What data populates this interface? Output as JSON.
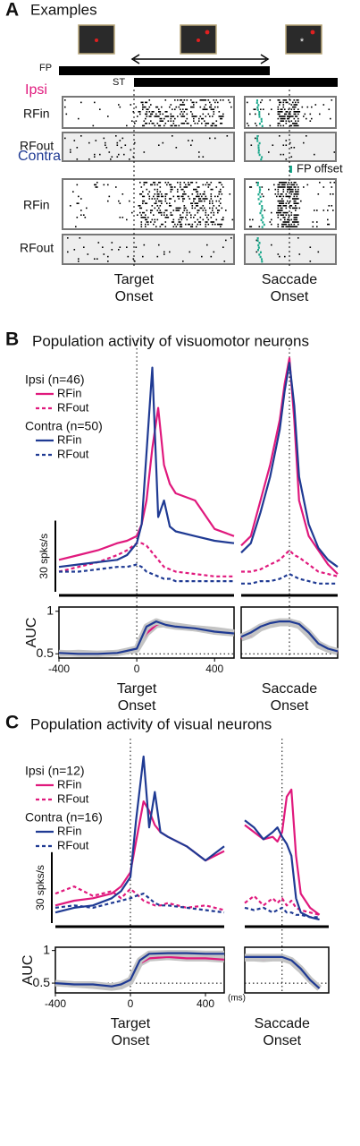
{
  "panel_a": {
    "label": "A",
    "title": "Examples",
    "fp": "FP",
    "st": "ST",
    "ipsi": "Ipsi",
    "contra": "Contra",
    "rows": [
      "RFin",
      "RFout",
      "RFin",
      "RFout"
    ],
    "fp_offset": "FP offset",
    "target_onset": [
      "Target",
      "Onset"
    ],
    "saccade_onset": [
      "Saccade",
      "Onset"
    ]
  },
  "panel_b": {
    "label": "B",
    "title": "Population activity of visuomotor neurons"
  },
  "panel_c": {
    "label": "C",
    "title": "Population activity of visual neurons"
  },
  "chart_data": [
    {
      "type": "line",
      "xlim": [
        -400,
        500
      ],
      "ylim": [
        0,
        100
      ],
      "baseline": true,
      "vline": 0,
      "scalebar": {
        "value": 30,
        "label": "30 spks/s"
      },
      "legend_groups": [
        "Ipsi (n=46)",
        "Contra (n=50)"
      ],
      "x": [
        -400,
        -300,
        -200,
        -100,
        -50,
        0,
        25,
        50,
        80,
        110,
        140,
        170,
        200,
        300,
        400,
        500
      ],
      "series": [
        {
          "name": "RFin",
          "color": "#e0197d",
          "dashed": false,
          "values": [
            15,
            17,
            19,
            22,
            23,
            25,
            30,
            40,
            62,
            79,
            55,
            47,
            43,
            40,
            28,
            25
          ]
        },
        {
          "name": "RFout",
          "color": "#e0197d",
          "dashed": true,
          "values": [
            10,
            12,
            14,
            17,
            19,
            22,
            22,
            21,
            18,
            15,
            12,
            11,
            10,
            9,
            8,
            8
          ]
        },
        {
          "name": "RFin",
          "color": "#1f3a93",
          "dashed": false,
          "values": [
            12,
            13,
            14,
            15,
            17,
            22,
            30,
            60,
            96,
            33,
            40,
            29,
            27,
            25,
            23,
            22
          ]
        },
        {
          "name": "RFout",
          "color": "#1f3a93",
          "dashed": true,
          "values": [
            10,
            10,
            11,
            12,
            12,
            13,
            12,
            10,
            9,
            8,
            7,
            7,
            6,
            6,
            6,
            6
          ]
        }
      ]
    },
    {
      "type": "line",
      "xlim": [
        -250,
        250
      ],
      "ylim": [
        0,
        100
      ],
      "baseline": true,
      "vline": 0,
      "x": [
        -250,
        -200,
        -150,
        -100,
        -50,
        -25,
        0,
        25,
        50,
        100,
        150,
        200,
        250
      ],
      "series": [
        {
          "color": "#e0197d",
          "dashed": false,
          "values": [
            21,
            25,
            40,
            55,
            74,
            89,
            100,
            74,
            40,
            25,
            19,
            13,
            9
          ]
        },
        {
          "color": "#e0197d",
          "dashed": true,
          "values": [
            10,
            10,
            11,
            13,
            15,
            17,
            19,
            17,
            16,
            13,
            10,
            9,
            8
          ]
        },
        {
          "color": "#1f3a93",
          "dashed": false,
          "values": [
            18,
            22,
            35,
            50,
            70,
            86,
            98,
            80,
            50,
            30,
            20,
            15,
            12
          ]
        },
        {
          "color": "#1f3a93",
          "dashed": true,
          "values": [
            5,
            5,
            6,
            6,
            7,
            8,
            9,
            8,
            7,
            6,
            5,
            5,
            5
          ]
        }
      ]
    },
    {
      "type": "line",
      "xlim": [
        -400,
        500
      ],
      "ylim": [
        0.45,
        1.05
      ],
      "yticks": [
        0.5,
        1
      ],
      "xticks": [
        -400,
        0,
        400
      ],
      "frame": true,
      "shaded": true,
      "hline": 0.5,
      "vline": 0,
      "ylabel": "AUC",
      "xlabel": [
        "Target",
        "Onset"
      ],
      "x": [
        -400,
        -300,
        -200,
        -100,
        0,
        50,
        100,
        150,
        200,
        300,
        400,
        500
      ],
      "series": [
        {
          "color": "#e0197d",
          "dashed": false,
          "values": [
            0.5,
            0.51,
            0.5,
            0.51,
            0.55,
            0.74,
            0.84,
            0.85,
            0.83,
            0.8,
            0.78,
            0.75
          ]
        },
        {
          "color": "#1f3a93",
          "dashed": false,
          "values": [
            0.51,
            0.5,
            0.5,
            0.51,
            0.56,
            0.82,
            0.88,
            0.84,
            0.82,
            0.8,
            0.76,
            0.74
          ]
        }
      ]
    },
    {
      "type": "line",
      "xlim": [
        -250,
        250
      ],
      "ylim": [
        0.45,
        1.05
      ],
      "frame": true,
      "shaded": true,
      "hline": 0.5,
      "vline": 0,
      "xlabel": [
        "Saccade",
        "Onset"
      ],
      "x": [
        -250,
        -200,
        -150,
        -100,
        -50,
        0,
        50,
        100,
        150,
        200,
        250
      ],
      "series": [
        {
          "color": "#e0197d",
          "dashed": false,
          "values": [
            0.68,
            0.72,
            0.8,
            0.84,
            0.86,
            0.86,
            0.83,
            0.72,
            0.6,
            0.55,
            0.52
          ]
        },
        {
          "color": "#1f3a93",
          "dashed": false,
          "values": [
            0.7,
            0.75,
            0.82,
            0.86,
            0.88,
            0.88,
            0.85,
            0.75,
            0.62,
            0.56,
            0.53
          ]
        }
      ]
    },
    {
      "type": "line",
      "xlim": [
        -400,
        500
      ],
      "ylim": [
        0,
        72
      ],
      "baseline": true,
      "vline": 0,
      "scalebar": {
        "value": 30,
        "label": "30 spks/s"
      },
      "legend_groups": [
        "Ipsi (n=12)",
        "Contra (n=16)"
      ],
      "x": [
        -400,
        -300,
        -200,
        -100,
        -50,
        0,
        30,
        70,
        100,
        130,
        160,
        200,
        300,
        400,
        500
      ],
      "series": [
        {
          "name": "RFin",
          "color": "#e0197d",
          "dashed": false,
          "values": [
            9,
            11,
            12,
            14,
            17,
            23,
            36,
            53,
            49,
            43,
            40,
            38,
            34,
            28,
            32
          ]
        },
        {
          "name": "RFout",
          "color": "#e0197d",
          "dashed": true,
          "values": [
            14,
            17,
            13,
            15,
            12,
            16,
            14,
            11,
            10,
            9,
            9,
            10,
            8,
            9,
            7
          ]
        },
        {
          "name": "RFin",
          "color": "#1f3a93",
          "dashed": false,
          "values": [
            6,
            8,
            9,
            12,
            15,
            21,
            45,
            72,
            42,
            57,
            40,
            38,
            34,
            28,
            34
          ]
        },
        {
          "name": "RFout",
          "color": "#1f3a93",
          "dashed": true,
          "values": [
            8,
            9,
            8,
            10,
            11,
            12,
            13,
            14,
            12,
            10,
            9,
            9,
            8,
            7,
            6
          ]
        }
      ]
    },
    {
      "type": "line",
      "xlim": [
        -200,
        250
      ],
      "ylim": [
        0,
        72
      ],
      "baseline": true,
      "vline": 0,
      "x": [
        -200,
        -150,
        -100,
        -50,
        -25,
        0,
        25,
        50,
        75,
        100,
        150,
        200
      ],
      "series": [
        {
          "color": "#e0197d",
          "dashed": false,
          "values": [
            43,
            40,
            37,
            38,
            36,
            40,
            55,
            58,
            30,
            14,
            8,
            5
          ]
        },
        {
          "color": "#e0197d",
          "dashed": true,
          "values": [
            10,
            13,
            9,
            12,
            10,
            12,
            9,
            11,
            8,
            7,
            6,
            5
          ]
        },
        {
          "color": "#1f3a93",
          "dashed": false,
          "values": [
            45,
            42,
            37,
            40,
            42,
            38,
            35,
            30,
            12,
            6,
            4,
            3
          ]
        },
        {
          "color": "#1f3a93",
          "dashed": true,
          "values": [
            8,
            7,
            8,
            6,
            7,
            8,
            6,
            6,
            5,
            5,
            4,
            4
          ]
        }
      ]
    },
    {
      "type": "line",
      "xlim": [
        -400,
        500
      ],
      "ylim": [
        0.35,
        1.05
      ],
      "yticks": [
        0.5,
        1
      ],
      "xticks": [
        -400,
        0,
        400
      ],
      "frame": true,
      "shaded": true,
      "hline": 0.5,
      "vline": 0,
      "ylabel": "AUC",
      "xlabel": [
        "Target",
        "Onset"
      ],
      "xunit": "(ms)",
      "x": [
        -400,
        -300,
        -200,
        -100,
        -50,
        0,
        50,
        100,
        200,
        300,
        400,
        500
      ],
      "series": [
        {
          "color": "#e0197d",
          "dashed": false,
          "values": [
            0.5,
            0.48,
            0.46,
            0.43,
            0.45,
            0.52,
            0.8,
            0.88,
            0.9,
            0.88,
            0.88,
            0.86
          ]
        },
        {
          "color": "#1f3a93",
          "dashed": false,
          "values": [
            0.5,
            0.48,
            0.48,
            0.45,
            0.48,
            0.55,
            0.85,
            0.95,
            0.96,
            0.96,
            0.95,
            0.95
          ]
        }
      ]
    },
    {
      "type": "line",
      "xlim": [
        -200,
        250
      ],
      "ylim": [
        0.35,
        1.05
      ],
      "frame": true,
      "shaded": true,
      "hline": 0.5,
      "vline": 0,
      "xlabel": [
        "Saccade",
        "Onset"
      ],
      "x": [
        -200,
        -150,
        -100,
        -50,
        0,
        50,
        100,
        150,
        200
      ],
      "series": [
        {
          "color": "#e0197d",
          "dashed": false,
          "values": [
            0.88,
            0.88,
            0.87,
            0.88,
            0.88,
            0.83,
            0.7,
            0.55,
            0.42
          ]
        },
        {
          "color": "#1f3a93",
          "dashed": false,
          "values": [
            0.9,
            0.9,
            0.9,
            0.9,
            0.9,
            0.85,
            0.72,
            0.55,
            0.42
          ]
        }
      ]
    }
  ]
}
